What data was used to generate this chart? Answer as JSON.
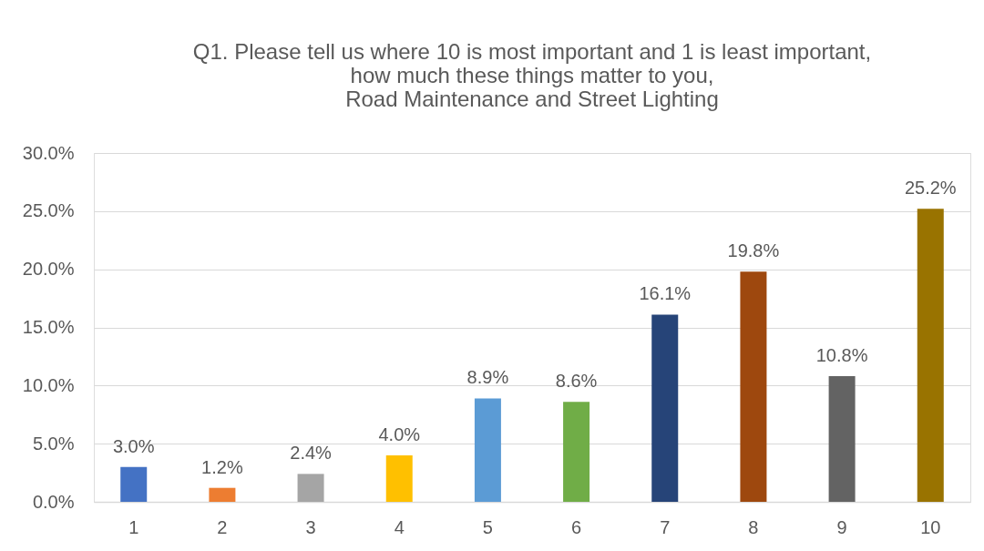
{
  "chart_data": {
    "type": "bar",
    "title": "Q1. Please tell us where 10 is most important and 1 is least important,\nhow much these things matter to you,\nRoad Maintenance and Street Lighting",
    "categories": [
      "1",
      "2",
      "3",
      "4",
      "5",
      "6",
      "7",
      "8",
      "9",
      "10"
    ],
    "values": [
      3.0,
      1.2,
      2.4,
      4.0,
      8.9,
      8.6,
      16.1,
      19.8,
      10.8,
      25.2
    ],
    "colors": [
      "#4472c4",
      "#ed7d31",
      "#a5a5a5",
      "#ffc000",
      "#5b9bd5",
      "#70ad47",
      "#264478",
      "#9e480e",
      "#636363",
      "#997300"
    ],
    "value_labels": [
      "3.0%",
      "1.2%",
      "2.4%",
      "4.0%",
      "8.9%",
      "8.6%",
      "16.1%",
      "19.8%",
      "10.8%",
      "25.2%"
    ],
    "ylim": [
      0,
      30
    ],
    "yticks": [
      {
        "value": 0,
        "label": "0.0%"
      },
      {
        "value": 5,
        "label": "5.0%"
      },
      {
        "value": 10,
        "label": "10.0%"
      },
      {
        "value": 15,
        "label": "15.0%"
      },
      {
        "value": 20,
        "label": "20.0%"
      },
      {
        "value": 25,
        "label": "25.0%"
      },
      {
        "value": 30,
        "label": "30.0%"
      }
    ],
    "grid": "y"
  }
}
